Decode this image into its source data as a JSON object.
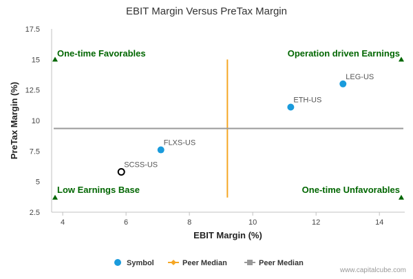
{
  "chart_data": {
    "type": "scatter",
    "title": "EBIT Margin Versus PreTax Margin",
    "xlabel": "EBIT Margin (%)",
    "ylabel": "PreTax Margin (%)",
    "xlim": [
      3.65,
      14.8
    ],
    "ylim": [
      2.5,
      17.5
    ],
    "x_ticks": [
      4,
      6,
      8,
      10,
      12,
      14
    ],
    "y_ticks": [
      2.5,
      5,
      7.5,
      10,
      12.5,
      15,
      17.5
    ],
    "x_tick_labels": [
      "4",
      "6",
      "8",
      "10",
      "12",
      "14"
    ],
    "y_tick_labels": [
      "2.5",
      "5",
      "7.5",
      "10",
      "12.5",
      "15",
      "17.5"
    ],
    "grid": false,
    "legend_position": "bottom",
    "points": [
      {
        "label": "FLXS-US",
        "x": 7.1,
        "y": 7.6,
        "style": "filled"
      },
      {
        "label": "SCSS-US",
        "x": 5.85,
        "y": 5.8,
        "style": "hollow"
      },
      {
        "label": "ETH-US",
        "x": 11.2,
        "y": 11.1,
        "style": "filled"
      },
      {
        "label": "LEG-US",
        "x": 12.85,
        "y": 13.0,
        "style": "filled"
      }
    ],
    "median_x": 9.2,
    "median_y": 9.35,
    "quadrant_labels": {
      "top_left": "One-time Favorables",
      "top_right": "Operation driven Earnings",
      "bottom_left": "Low Earnings Base",
      "bottom_right": "One-time Unfavorables"
    },
    "legend": [
      {
        "name": "Symbol",
        "color": "#1a9bdc"
      },
      {
        "name": "Peer Median",
        "color": "#f5a623"
      },
      {
        "name": "Peer Median",
        "color": "#999999"
      }
    ],
    "colors": {
      "point": "#1a9bdc",
      "median_vertical": "#f5a623",
      "median_horizontal": "#999999",
      "quadrant_text": "#006600",
      "marker": "#006600"
    }
  },
  "credit": "www.capitalcube.com"
}
